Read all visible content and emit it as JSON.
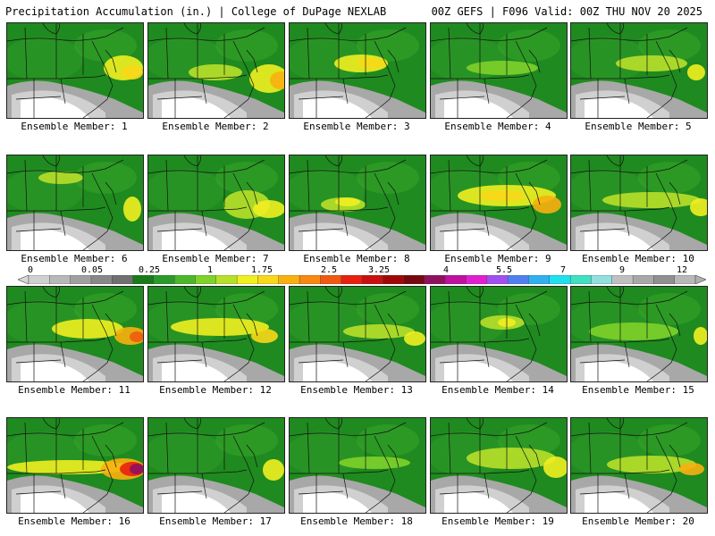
{
  "header": {
    "title": "Precipitation Accumulation (in.) | College of DuPage NEXLAB",
    "run_info": "00Z GEFS | F096 Valid: 00Z THU NOV 20 2025"
  },
  "colorbar": {
    "labels": [
      "0",
      "0.05",
      "0.25",
      "1",
      "1.75",
      "2.5",
      "3.25",
      "4",
      "5.5",
      "7",
      "9",
      "12"
    ],
    "colors": [
      "#d0d0d0",
      "#b8b8b8",
      "#a0a0a0",
      "#888888",
      "#707070",
      "#1a7a1a",
      "#2a9a2a",
      "#4ab82a",
      "#7ed22a",
      "#b8e02a",
      "#f0f020",
      "#f8d818",
      "#f8b010",
      "#f88810",
      "#f05a10",
      "#e82010",
      "#c81010",
      "#a00808",
      "#780810",
      "#901060",
      "#c010a0",
      "#e020d0",
      "#a050f0",
      "#5080f0",
      "#30b0f0",
      "#20e0f0",
      "#40e0c0",
      "#90e0e0",
      "#c0c0c0",
      "#a8a8a8",
      "#909090",
      "#b8b8b8"
    ],
    "color_names": [
      "gray-scale",
      "green",
      "yellow",
      "orange",
      "red",
      "dark-red",
      "magenta",
      "purple",
      "blue",
      "cyan",
      "gray-scale"
    ]
  },
  "members": [
    {
      "caption": "Ensemble Member: 1"
    },
    {
      "caption": "Ensemble Member: 2"
    },
    {
      "caption": "Ensemble Member: 3"
    },
    {
      "caption": "Ensemble Member: 4"
    },
    {
      "caption": "Ensemble Member: 5"
    },
    {
      "caption": "Ensemble Member: 6"
    },
    {
      "caption": "Ensemble Member: 7"
    },
    {
      "caption": "Ensemble Member: 8"
    },
    {
      "caption": "Ensemble Member: 9"
    },
    {
      "caption": "Ensemble Member: 10"
    },
    {
      "caption": "Ensemble Member: 11"
    },
    {
      "caption": "Ensemble Member: 12"
    },
    {
      "caption": "Ensemble Member: 13"
    },
    {
      "caption": "Ensemble Member: 14"
    },
    {
      "caption": "Ensemble Member: 15"
    },
    {
      "caption": "Ensemble Member: 16"
    },
    {
      "caption": "Ensemble Member: 17"
    },
    {
      "caption": "Ensemble Member: 18"
    },
    {
      "caption": "Ensemble Member: 19"
    },
    {
      "caption": "Ensemble Member: 20"
    }
  ]
}
